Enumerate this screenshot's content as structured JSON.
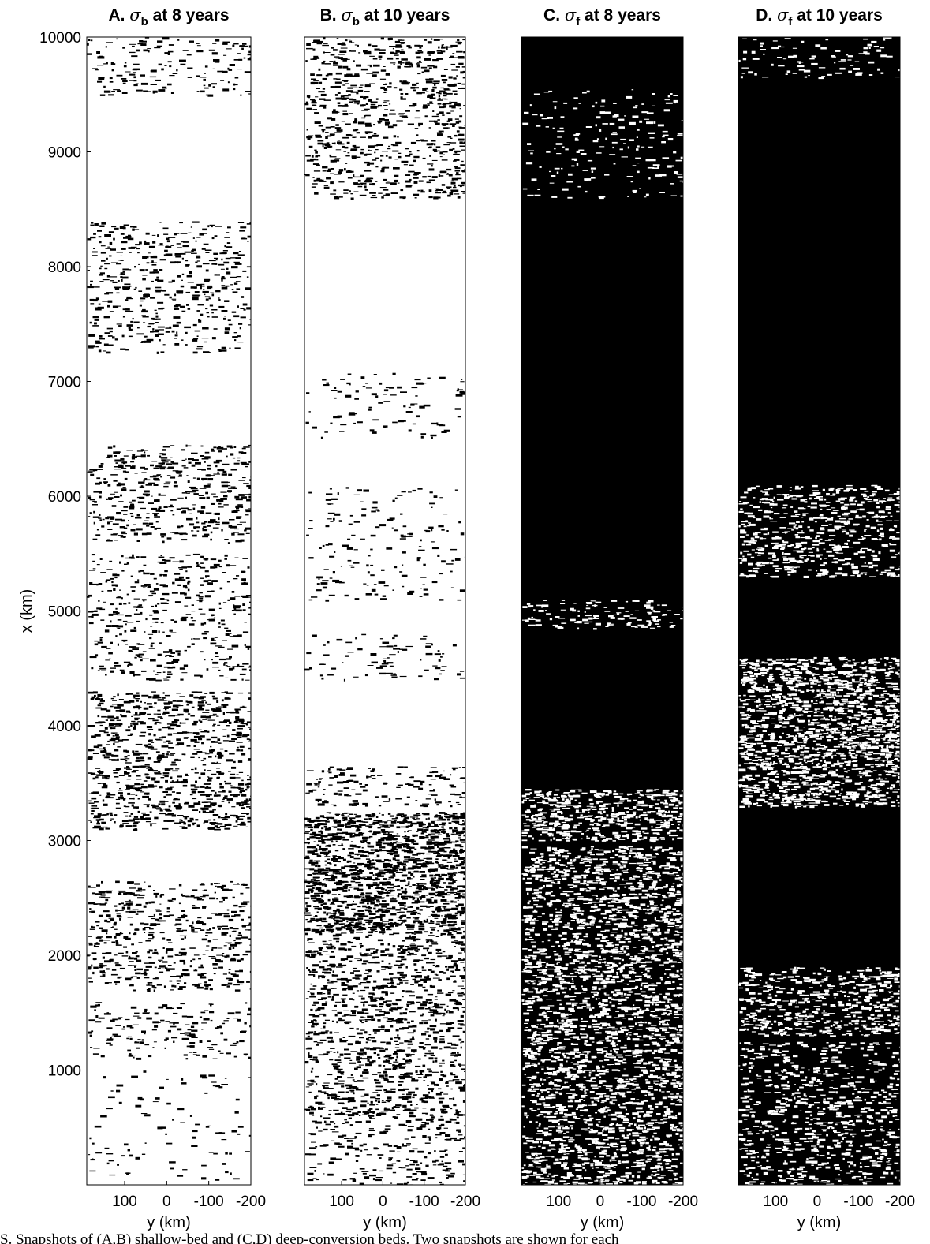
{
  "chart_data": {
    "type": "heatmap",
    "ylabel": "x (km)",
    "xlabel": "y (km)",
    "yticks": [
      1000,
      2000,
      3000,
      4000,
      5000,
      6000,
      7000,
      8000,
      9000,
      10000
    ],
    "xticks": [
      100,
      0,
      -100,
      -200
    ],
    "ylim": [
      0,
      10000
    ],
    "xlim": [
      190,
      -200
    ],
    "x_axis_reversed": true,
    "colors": {
      "on": "#000000",
      "off": "#ffffff"
    },
    "panels": [
      {
        "id": "A",
        "title_prefix": "A.",
        "symbol": "σ",
        "subscript": "b",
        "title_suffix": "at 8 years",
        "background": "#ffffff",
        "fill": "#000000",
        "bands": [
          {
            "x": [
              9500,
              10000
            ],
            "density": 0.1
          },
          {
            "x": [
              7250,
              8400
            ],
            "density": 0.13
          },
          {
            "x": [
              5600,
              6450
            ],
            "density": 0.16
          },
          {
            "x": [
              4400,
              5500
            ],
            "density": 0.12
          },
          {
            "x": [
              3100,
              4300
            ],
            "density": 0.22
          },
          {
            "x": [
              1700,
              2650
            ],
            "density": 0.17
          },
          {
            "x": [
              1100,
              1600
            ],
            "density": 0.1
          },
          {
            "x": [
              50,
              1000
            ],
            "density": 0.03
          }
        ]
      },
      {
        "id": "B",
        "title_prefix": "B.",
        "symbol": "σ",
        "subscript": "b",
        "title_suffix": "at 10 years",
        "background": "#ffffff",
        "fill": "#000000",
        "bands": [
          {
            "x": [
              8600,
              10000
            ],
            "density": 0.18
          },
          {
            "x": [
              6500,
              7100
            ],
            "density": 0.05
          },
          {
            "x": [
              5100,
              6100
            ],
            "density": 0.05
          },
          {
            "x": [
              4400,
              4800
            ],
            "density": 0.06
          },
          {
            "x": [
              3300,
              3650
            ],
            "density": 0.12
          },
          {
            "x": [
              2200,
              3250
            ],
            "density": 0.45
          },
          {
            "x": [
              600,
              2200
            ],
            "density": 0.22
          },
          {
            "x": [
              0,
              600
            ],
            "density": 0.12
          }
        ]
      },
      {
        "id": "C",
        "title_prefix": "C.",
        "symbol": "σ",
        "subscript": "f",
        "title_suffix": "at 8 years",
        "background": "#000000",
        "fill": "#ffffff",
        "bands": [
          {
            "x": [
              8600,
              9550
            ],
            "density": 0.06
          },
          {
            "x": [
              4850,
              5100
            ],
            "density": 0.15
          },
          {
            "x": [
              3000,
              3450
            ],
            "density": 0.35
          },
          {
            "x": [
              0,
              2950
            ],
            "density": 0.3
          }
        ]
      },
      {
        "id": "D",
        "title_prefix": "D.",
        "symbol": "σ",
        "subscript": "f",
        "title_suffix": "at 10 years",
        "background": "#000000",
        "fill": "#ffffff",
        "bands": [
          {
            "x": [
              9650,
              10000
            ],
            "density": 0.08
          },
          {
            "x": [
              5300,
              6100
            ],
            "density": 0.22
          },
          {
            "x": [
              3300,
              4600
            ],
            "density": 0.38
          },
          {
            "x": [
              1300,
              1900
            ],
            "density": 0.25
          },
          {
            "x": [
              0,
              1250
            ],
            "density": 0.18
          }
        ]
      }
    ]
  },
  "caption": "S. Snapshots of (A,B) shallow-bed and (C,D) deep-conversion beds. Two snapshots are shown for each"
}
